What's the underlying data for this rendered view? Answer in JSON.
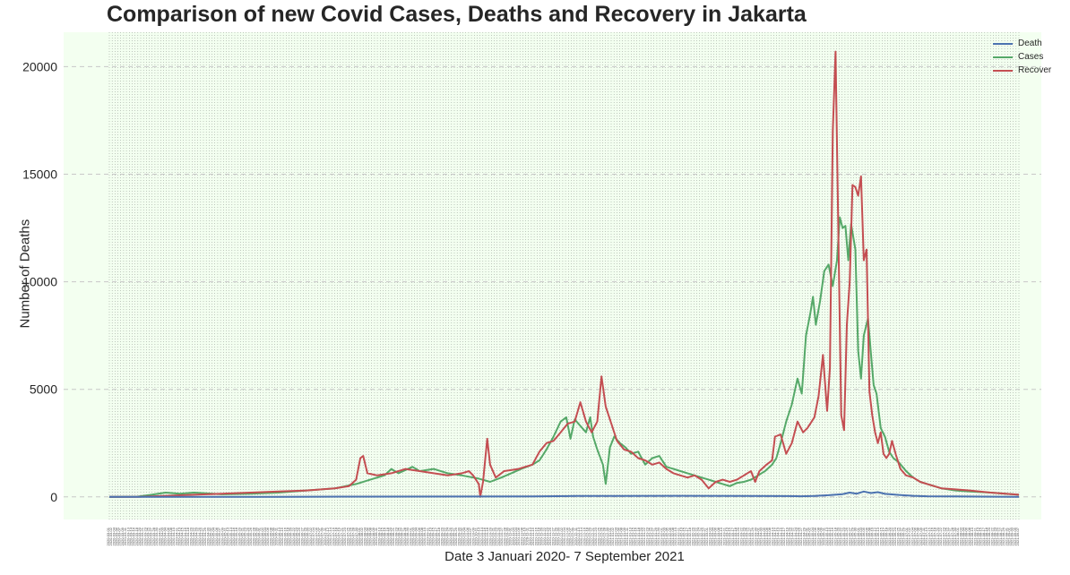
{
  "chart_data": {
    "type": "line",
    "title": "Comparison of new Covid Cases, Deaths and Recovery in Jakarta",
    "xlabel": "Date 3 Januari 2020- 7 September 2021",
    "ylabel": "Number of Deaths",
    "ylim": [
      -1050,
      21600
    ],
    "yticks": [
      0,
      5000,
      10000,
      15000,
      20000
    ],
    "x_range": [
      "2020-03-01",
      "2021-09-07"
    ],
    "grid": "dashed",
    "legend_position": "top-right",
    "background": "#f3fff0",
    "series": [
      {
        "name": "Death",
        "color": "#4c72b0",
        "points": [
          [
            0,
            0
          ],
          [
            60,
            2
          ],
          [
            120,
            5
          ],
          [
            180,
            10
          ],
          [
            240,
            15
          ],
          [
            300,
            25
          ],
          [
            330,
            40
          ],
          [
            360,
            45
          ],
          [
            400,
            50
          ],
          [
            450,
            40
          ],
          [
            480,
            35
          ],
          [
            490,
            30
          ],
          [
            500,
            45
          ],
          [
            510,
            80
          ],
          [
            520,
            130
          ],
          [
            525,
            200
          ],
          [
            530,
            150
          ],
          [
            535,
            250
          ],
          [
            540,
            180
          ],
          [
            545,
            220
          ],
          [
            550,
            140
          ],
          [
            560,
            90
          ],
          [
            570,
            50
          ],
          [
            580,
            30
          ],
          [
            600,
            20
          ],
          [
            620,
            10
          ],
          [
            645,
            5
          ]
        ]
      },
      {
        "name": "Cases",
        "color": "#55a868",
        "points": [
          [
            0,
            0
          ],
          [
            20,
            10
          ],
          [
            30,
            100
          ],
          [
            40,
            200
          ],
          [
            50,
            150
          ],
          [
            60,
            200
          ],
          [
            80,
            120
          ],
          [
            100,
            150
          ],
          [
            120,
            200
          ],
          [
            140,
            300
          ],
          [
            160,
            400
          ],
          [
            175,
            600
          ],
          [
            185,
            800
          ],
          [
            195,
            1000
          ],
          [
            200,
            1300
          ],
          [
            205,
            1100
          ],
          [
            210,
            1250
          ],
          [
            215,
            1400
          ],
          [
            220,
            1200
          ],
          [
            230,
            1300
          ],
          [
            240,
            1100
          ],
          [
            250,
            1000
          ],
          [
            258,
            900
          ],
          [
            262,
            850
          ],
          [
            270,
            700
          ],
          [
            278,
            900
          ],
          [
            285,
            1100
          ],
          [
            292,
            1300
          ],
          [
            300,
            1500
          ],
          [
            305,
            1700
          ],
          [
            310,
            2200
          ],
          [
            315,
            2800
          ],
          [
            320,
            3500
          ],
          [
            324,
            3700
          ],
          [
            327,
            2700
          ],
          [
            330,
            3600
          ],
          [
            334,
            3300
          ],
          [
            338,
            3000
          ],
          [
            341,
            3700
          ],
          [
            343,
            2800
          ],
          [
            346,
            2200
          ],
          [
            350,
            1500
          ],
          [
            352,
            600
          ],
          [
            355,
            2300
          ],
          [
            358,
            2800
          ],
          [
            362,
            2500
          ],
          [
            366,
            2300
          ],
          [
            370,
            2000
          ],
          [
            375,
            2100
          ],
          [
            380,
            1500
          ],
          [
            385,
            1800
          ],
          [
            390,
            1900
          ],
          [
            395,
            1400
          ],
          [
            400,
            1300
          ],
          [
            405,
            1200
          ],
          [
            410,
            1100
          ],
          [
            415,
            1000
          ],
          [
            420,
            900
          ],
          [
            425,
            800
          ],
          [
            430,
            700
          ],
          [
            435,
            600
          ],
          [
            440,
            500
          ],
          [
            445,
            650
          ],
          [
            450,
            700
          ],
          [
            455,
            800
          ],
          [
            460,
            1000
          ],
          [
            465,
            1200
          ],
          [
            470,
            1500
          ],
          [
            473,
            1800
          ],
          [
            476,
            2500
          ],
          [
            480,
            3500
          ],
          [
            484,
            4300
          ],
          [
            488,
            5500
          ],
          [
            491,
            4800
          ],
          [
            494,
            7500
          ],
          [
            497,
            8500
          ],
          [
            499,
            9300
          ],
          [
            501,
            8000
          ],
          [
            504,
            9100
          ],
          [
            507,
            10500
          ],
          [
            510,
            10800
          ],
          [
            513,
            9800
          ],
          [
            516,
            11000
          ],
          [
            518,
            13000
          ],
          [
            520,
            12500
          ],
          [
            522,
            12600
          ],
          [
            524,
            11000
          ],
          [
            526,
            12700
          ],
          [
            529,
            11500
          ],
          [
            531,
            6800
          ],
          [
            533,
            5500
          ],
          [
            535,
            7500
          ],
          [
            538,
            8300
          ],
          [
            540,
            6700
          ],
          [
            542,
            5200
          ],
          [
            544,
            4800
          ],
          [
            547,
            3200
          ],
          [
            550,
            2800
          ],
          [
            553,
            2100
          ],
          [
            556,
            1800
          ],
          [
            560,
            1600
          ],
          [
            565,
            1200
          ],
          [
            570,
            900
          ],
          [
            575,
            700
          ],
          [
            580,
            600
          ],
          [
            590,
            400
          ],
          [
            600,
            300
          ],
          [
            610,
            250
          ],
          [
            625,
            200
          ],
          [
            645,
            100
          ]
        ]
      },
      {
        "name": "Recover",
        "color": "#c44e52",
        "points": [
          [
            0,
            0
          ],
          [
            20,
            5
          ],
          [
            40,
            50
          ],
          [
            60,
            100
          ],
          [
            80,
            150
          ],
          [
            100,
            200
          ],
          [
            120,
            250
          ],
          [
            140,
            300
          ],
          [
            160,
            400
          ],
          [
            170,
            500
          ],
          [
            175,
            800
          ],
          [
            178,
            1800
          ],
          [
            180,
            1900
          ],
          [
            183,
            1100
          ],
          [
            190,
            1000
          ],
          [
            200,
            1100
          ],
          [
            210,
            1300
          ],
          [
            220,
            1200
          ],
          [
            230,
            1100
          ],
          [
            240,
            1000
          ],
          [
            250,
            1100
          ],
          [
            255,
            1200
          ],
          [
            258,
            1000
          ],
          [
            260,
            800
          ],
          [
            262,
            600
          ],
          [
            263,
            0
          ],
          [
            265,
            700
          ],
          [
            268,
            2700
          ],
          [
            270,
            1500
          ],
          [
            274,
            900
          ],
          [
            280,
            1200
          ],
          [
            290,
            1300
          ],
          [
            300,
            1500
          ],
          [
            305,
            2100
          ],
          [
            310,
            2500
          ],
          [
            315,
            2600
          ],
          [
            320,
            3000
          ],
          [
            325,
            3400
          ],
          [
            330,
            3500
          ],
          [
            334,
            4400
          ],
          [
            338,
            3500
          ],
          [
            342,
            3000
          ],
          [
            346,
            3500
          ],
          [
            349,
            5600
          ],
          [
            352,
            4200
          ],
          [
            356,
            3400
          ],
          [
            360,
            2600
          ],
          [
            365,
            2200
          ],
          [
            370,
            2100
          ],
          [
            375,
            1800
          ],
          [
            380,
            1700
          ],
          [
            385,
            1500
          ],
          [
            390,
            1600
          ],
          [
            395,
            1300
          ],
          [
            400,
            1100
          ],
          [
            405,
            1000
          ],
          [
            410,
            900
          ],
          [
            415,
            1000
          ],
          [
            420,
            800
          ],
          [
            425,
            400
          ],
          [
            430,
            700
          ],
          [
            435,
            800
          ],
          [
            440,
            700
          ],
          [
            445,
            800
          ],
          [
            450,
            1000
          ],
          [
            455,
            1200
          ],
          [
            458,
            700
          ],
          [
            461,
            1200
          ],
          [
            466,
            1500
          ],
          [
            470,
            1700
          ],
          [
            472,
            2800
          ],
          [
            476,
            2900
          ],
          [
            480,
            2000
          ],
          [
            484,
            2500
          ],
          [
            488,
            3500
          ],
          [
            492,
            3000
          ],
          [
            495,
            3200
          ],
          [
            498,
            3500
          ],
          [
            500,
            3700
          ],
          [
            503,
            4700
          ],
          [
            506,
            6600
          ],
          [
            509,
            4000
          ],
          [
            511,
            6000
          ],
          [
            513,
            17000
          ],
          [
            515,
            20700
          ],
          [
            517,
            12000
          ],
          [
            519,
            3800
          ],
          [
            521,
            3100
          ],
          [
            523,
            8000
          ],
          [
            525,
            10000
          ],
          [
            527,
            14500
          ],
          [
            529,
            14400
          ],
          [
            531,
            14000
          ],
          [
            533,
            14900
          ],
          [
            535,
            11000
          ],
          [
            537,
            11500
          ],
          [
            539,
            4900
          ],
          [
            541,
            3800
          ],
          [
            543,
            3000
          ],
          [
            545,
            2500
          ],
          [
            547,
            3000
          ],
          [
            549,
            2000
          ],
          [
            551,
            1800
          ],
          [
            553,
            2000
          ],
          [
            555,
            2600
          ],
          [
            558,
            1900
          ],
          [
            561,
            1300
          ],
          [
            565,
            1000
          ],
          [
            570,
            900
          ],
          [
            575,
            700
          ],
          [
            580,
            600
          ],
          [
            590,
            400
          ],
          [
            600,
            350
          ],
          [
            610,
            300
          ],
          [
            625,
            200
          ],
          [
            645,
            100
          ]
        ]
      }
    ]
  }
}
